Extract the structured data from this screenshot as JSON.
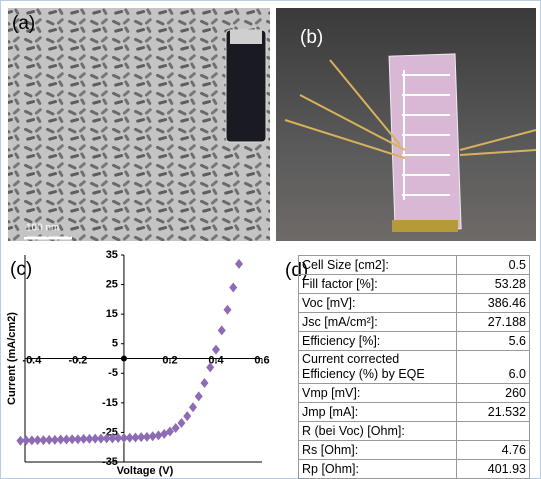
{
  "panels": {
    "a": {
      "label": "(a)",
      "scale_bar": "100 nm"
    },
    "b": {
      "label": "(b)"
    },
    "c": {
      "label": "(c)"
    },
    "d": {
      "label": "(d)"
    }
  },
  "chart_data": {
    "type": "scatter",
    "xlabel": "Voltage (V)",
    "ylabel": "Current (mA/cm2)",
    "color": "#8e6bb5",
    "x": [
      -0.45,
      -0.425,
      -0.4,
      -0.375,
      -0.35,
      -0.325,
      -0.3,
      -0.275,
      -0.25,
      -0.225,
      -0.2,
      -0.175,
      -0.15,
      -0.125,
      -0.1,
      -0.075,
      -0.05,
      -0.025,
      0,
      0.025,
      0.05,
      0.075,
      0.1,
      0.125,
      0.15,
      0.175,
      0.2,
      0.225,
      0.25,
      0.275,
      0.3,
      0.325,
      0.35,
      0.375,
      0.4,
      0.425,
      0.45,
      0.475,
      0.5
    ],
    "values": [
      -27.8,
      -27.7,
      -27.7,
      -27.6,
      -27.6,
      -27.5,
      -27.5,
      -27.4,
      -27.4,
      -27.3,
      -27.3,
      -27.2,
      -27.2,
      -27.1,
      -27.1,
      -27.0,
      -27.0,
      -26.9,
      -26.9,
      -26.8,
      -26.7,
      -26.6,
      -26.5,
      -26.3,
      -26.0,
      -25.5,
      -24.7,
      -23.5,
      -21.8,
      -19.5,
      -16.5,
      -12.8,
      -8.3,
      -3.0,
      3.0,
      9.5,
      16.5,
      24.0,
      32.0
    ],
    "xlim": [
      -0.43,
      0.6
    ],
    "ylim": [
      -35,
      35
    ],
    "xticks": [
      -0.4,
      -0.2,
      0.2,
      0.4,
      0.6
    ],
    "yticks": [
      35,
      25,
      15,
      5,
      -5,
      -15,
      -25,
      -35
    ]
  },
  "table": {
    "rows": [
      [
        "Cell Size [cm2]:",
        "0.5"
      ],
      [
        "Fill factor [%]:",
        "53.28"
      ],
      [
        "Voc [mV]:",
        "386.46"
      ],
      [
        "Jsc [mA/cm²]:",
        "27.188"
      ],
      [
        "Efficiency [%]:",
        "5.6"
      ],
      [
        "Current corrected Efficiency (%) by EQE",
        "6.0"
      ],
      [
        "Vmp [mV]:",
        "260"
      ],
      [
        "Jmp [mA]:",
        "21.532"
      ],
      [
        "R (bei Voc) [Ohm]:"
      ],
      [
        "Rs [Ohm]:",
        "4.76"
      ],
      [
        "Rp [Ohm]:",
        "401.93"
      ]
    ]
  }
}
